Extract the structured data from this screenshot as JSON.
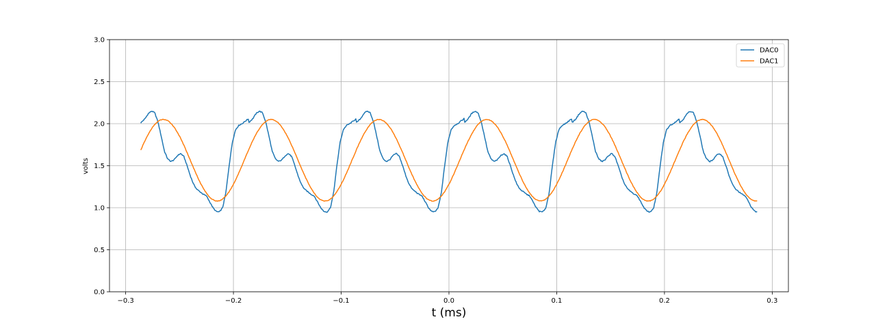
{
  "chart_data": {
    "type": "line",
    "title": "",
    "xlabel": "t (ms)",
    "ylabel": "volts",
    "xlim": [
      -0.315,
      0.315
    ],
    "ylim": [
      0.0,
      3.0
    ],
    "xticks": [
      -0.3,
      -0.2,
      -0.1,
      0.0,
      0.1,
      0.2,
      0.3
    ],
    "xtick_labels": [
      "−0.3",
      "−0.2",
      "−0.1",
      "0.0",
      "0.1",
      "0.2",
      "0.3"
    ],
    "yticks": [
      0.0,
      0.5,
      1.0,
      1.5,
      2.0,
      2.5,
      3.0
    ],
    "ytick_labels": [
      "0.0",
      "0.5",
      "1.0",
      "1.5",
      "2.0",
      "2.5",
      "3.0"
    ],
    "grid": true,
    "legend_position": "top-right",
    "period_ms": 0.1,
    "series": [
      {
        "name": "DAC0",
        "color": "#1f77b4",
        "x_range": [
          -0.286,
          0.286
        ],
        "period_profile": [
          [
            -0.286,
            2.01
          ],
          [
            -0.282,
            2.06
          ],
          [
            -0.279,
            2.12
          ],
          [
            -0.276,
            2.15
          ],
          [
            -0.273,
            2.13
          ],
          [
            -0.27,
            2.02
          ],
          [
            -0.267,
            1.85
          ],
          [
            -0.264,
            1.67
          ],
          [
            -0.261,
            1.58
          ],
          [
            -0.258,
            1.55
          ],
          [
            -0.255,
            1.57
          ],
          [
            -0.252,
            1.62
          ],
          [
            -0.249,
            1.645
          ],
          [
            -0.246,
            1.61
          ],
          [
            -0.243,
            1.5
          ],
          [
            -0.24,
            1.38
          ],
          [
            -0.237,
            1.28
          ],
          [
            -0.234,
            1.22
          ],
          [
            -0.231,
            1.19
          ],
          [
            -0.228,
            1.16
          ],
          [
            -0.225,
            1.14
          ],
          [
            -0.222,
            1.07
          ],
          [
            -0.219,
            1.0
          ],
          [
            -0.216,
            0.955
          ],
          [
            -0.213,
            0.95
          ],
          [
            -0.21,
            1.0
          ],
          [
            -0.207,
            1.18
          ],
          [
            -0.204,
            1.5
          ],
          [
            -0.201,
            1.78
          ],
          [
            -0.198,
            1.93
          ],
          [
            -0.195,
            1.98
          ],
          [
            -0.192,
            2.0
          ],
          [
            -0.189,
            2.03
          ],
          [
            -0.186,
            2.06
          ]
        ]
      },
      {
        "name": "DAC1",
        "color": "#ff7f0e",
        "x_range": [
          -0.286,
          0.286
        ],
        "min": 1.08,
        "max": 2.05,
        "peak_times": [
          -0.265,
          -0.165,
          -0.065,
          0.035,
          0.135,
          0.235
        ]
      }
    ]
  }
}
